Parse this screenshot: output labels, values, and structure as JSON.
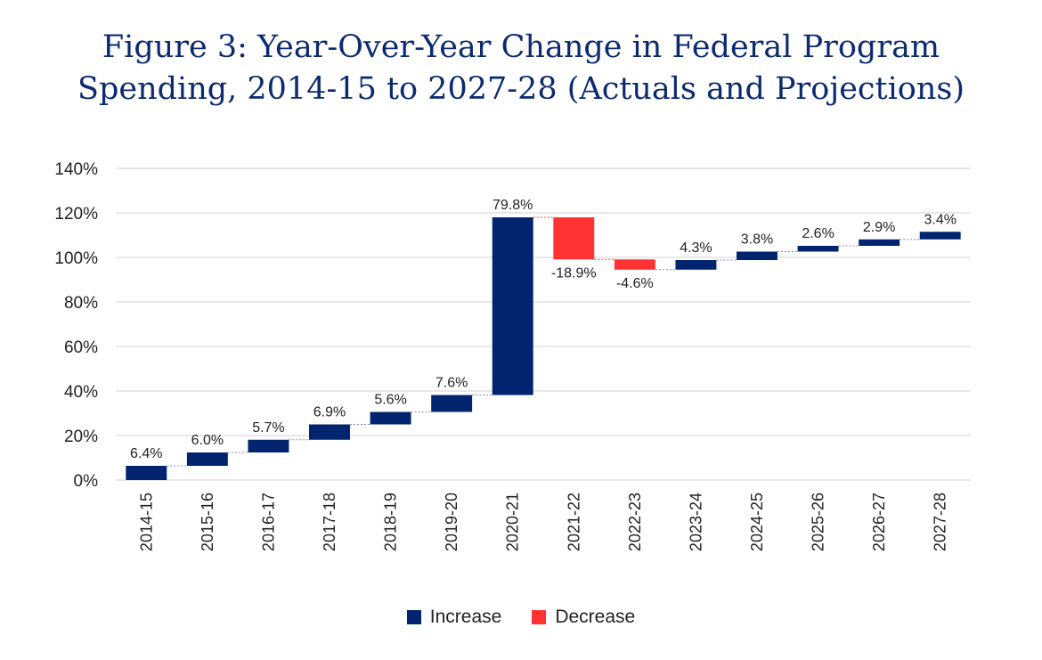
{
  "title": {
    "line1": "Figure 3: Year-Over-Year Change in Federal Program",
    "line2": "Spending, 2014-15 to 2027-28 (Actuals and Projections)"
  },
  "colors": {
    "increase": "#00256e",
    "decrease": "#ff3333",
    "grid": "#d9d9d9",
    "connector": "#7a8fb5"
  },
  "legend": {
    "increase": "Increase",
    "decrease": "Decrease"
  },
  "chart_data": {
    "type": "bar",
    "subtype": "waterfall",
    "categories": [
      "2014-15",
      "2015-16",
      "2016-17",
      "2017-18",
      "2018-19",
      "2019-20",
      "2020-21",
      "2021-22",
      "2022-23",
      "2023-24",
      "2024-25",
      "2025-26",
      "2026-27",
      "2027-28"
    ],
    "values": [
      6.4,
      6.0,
      5.7,
      6.9,
      5.6,
      7.6,
      79.8,
      -18.9,
      -4.6,
      4.3,
      3.8,
      2.6,
      2.9,
      3.4
    ],
    "data_labels": [
      "6.4%",
      "6.0%",
      "5.7%",
      "6.9%",
      "5.6%",
      "7.6%",
      "79.8%",
      "-18.9%",
      "-4.6%",
      "4.3%",
      "3.8%",
      "2.6%",
      "2.9%",
      "3.4%"
    ],
    "ylim": [
      0,
      140
    ],
    "yticks": [
      0,
      20,
      40,
      60,
      80,
      100,
      120,
      140
    ],
    "ytick_labels": [
      "0%",
      "20%",
      "40%",
      "60%",
      "80%",
      "100%",
      "120%",
      "140%"
    ],
    "grid": true,
    "legend_position": "bottom"
  }
}
